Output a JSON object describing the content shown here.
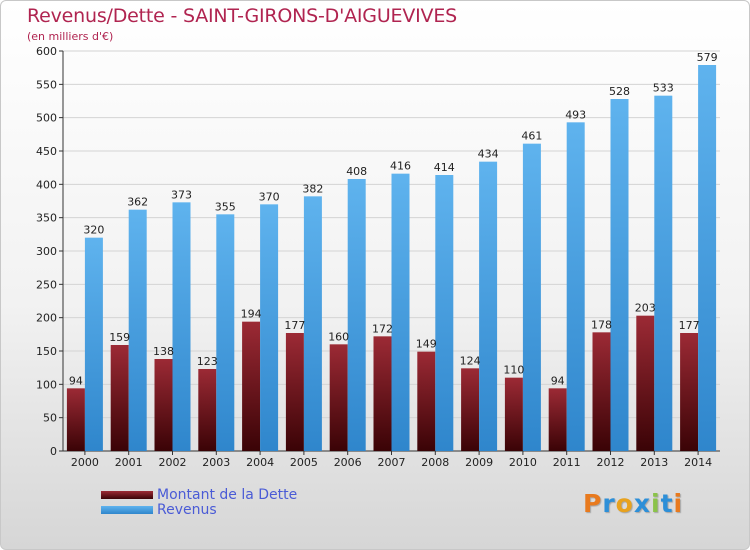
{
  "title": "Revenus/Dette - SAINT-GIRONS-D'AIGUEVIVES",
  "subtitle": "(en milliers d'€)",
  "colors": {
    "debt": "#6a0c14",
    "revenue": "#4aa3e6",
    "title": "#b02450",
    "legend_text": "#4a5bd6"
  },
  "legend": [
    {
      "label": "Montant de la Dette",
      "color": "#6a0c14"
    },
    {
      "label": "Revenus",
      "color": "#4aa3e6"
    }
  ],
  "logo": {
    "text": "Proxiti",
    "letters": [
      "P",
      "r",
      "o",
      "x",
      "i",
      "t",
      "i"
    ],
    "colors": [
      "#e87a1e",
      "#2d8fd8",
      "#e8a21e",
      "#2d8fd8",
      "#8bc34a",
      "#2d8fd8",
      "#e87a1e"
    ]
  },
  "chart_data": {
    "type": "bar",
    "categories": [
      "2000",
      "2001",
      "2002",
      "2003",
      "2004",
      "2005",
      "2006",
      "2007",
      "2008",
      "2009",
      "2010",
      "2011",
      "2012",
      "2013",
      "2014"
    ],
    "series": [
      {
        "name": "Montant de la Dette",
        "values": [
          94,
          159,
          138,
          123,
          194,
          177,
          160,
          172,
          149,
          124,
          110,
          94,
          178,
          203,
          177
        ]
      },
      {
        "name": "Revenus",
        "values": [
          320,
          362,
          373,
          355,
          370,
          382,
          408,
          416,
          414,
          434,
          461,
          493,
          528,
          533,
          579
        ]
      }
    ],
    "yticks": [
      0,
      50,
      100,
      150,
      200,
      250,
      300,
      350,
      400,
      450,
      500,
      550,
      600
    ],
    "ylim": [
      0,
      600
    ],
    "grid": true,
    "legend_position": "bottom-left"
  }
}
